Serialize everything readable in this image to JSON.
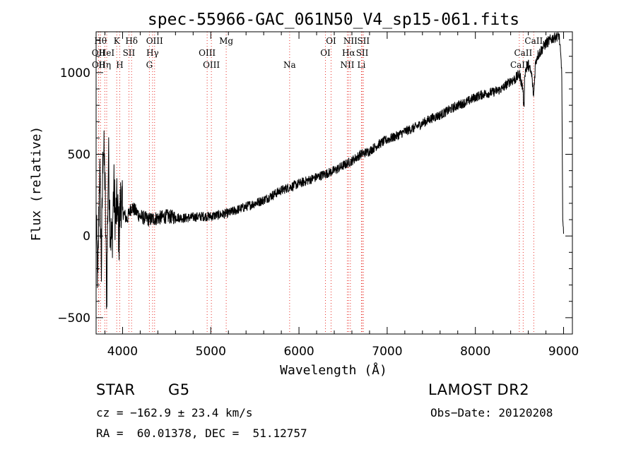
{
  "chart_data": {
    "type": "line",
    "title": "spec-55966-GAC_061N50_V4_sp15-061.fits",
    "xlabel": "Wavelength (Å)",
    "ylabel": "Flux (relative)",
    "xlim": [
      3700,
      9100
    ],
    "ylim": [
      -600,
      1250
    ],
    "x_ticks": [
      4000,
      5000,
      6000,
      7000,
      8000,
      9000
    ],
    "x_tick_labels": [
      "4000",
      "5000",
      "6000",
      "7000",
      "8000",
      "9000"
    ],
    "y_ticks": [
      -500,
      0,
      500,
      1000
    ],
    "y_tick_labels": [
      "−500",
      "0",
      "500",
      "1000"
    ],
    "grid": false,
    "series": [
      {
        "color": "#000000",
        "points": [
          [
            3700,
            100
          ],
          [
            3720,
            -300
          ],
          [
            3740,
            450
          ],
          [
            3760,
            -200
          ],
          [
            3780,
            600
          ],
          [
            3800,
            350
          ],
          [
            3820,
            -400
          ],
          [
            3840,
            500
          ],
          [
            3860,
            50
          ],
          [
            3880,
            -50
          ],
          [
            3900,
            300
          ],
          [
            3920,
            100
          ],
          [
            3940,
            200
          ],
          [
            3960,
            0
          ],
          [
            3980,
            250
          ],
          [
            4000,
            150
          ],
          [
            4050,
            100
          ],
          [
            4100,
            180
          ],
          [
            4200,
            120
          ],
          [
            4300,
            100
          ],
          [
            4400,
            110
          ],
          [
            4500,
            120
          ],
          [
            4600,
            115
          ],
          [
            4700,
            110
          ],
          [
            4800,
            115
          ],
          [
            4900,
            120
          ],
          [
            5000,
            120
          ],
          [
            5100,
            130
          ],
          [
            5200,
            140
          ],
          [
            5300,
            160
          ],
          [
            5400,
            180
          ],
          [
            5500,
            200
          ],
          [
            5600,
            220
          ],
          [
            5700,
            250
          ],
          [
            5800,
            280
          ],
          [
            5900,
            300
          ],
          [
            6000,
            320
          ],
          [
            6100,
            340
          ],
          [
            6200,
            360
          ],
          [
            6300,
            380
          ],
          [
            6400,
            400
          ],
          [
            6500,
            430
          ],
          [
            6600,
            460
          ],
          [
            6700,
            500
          ],
          [
            6800,
            520
          ],
          [
            6900,
            560
          ],
          [
            7000,
            590
          ],
          [
            7100,
            610
          ],
          [
            7200,
            640
          ],
          [
            7300,
            660
          ],
          [
            7400,
            690
          ],
          [
            7500,
            720
          ],
          [
            7600,
            740
          ],
          [
            7700,
            770
          ],
          [
            7800,
            800
          ],
          [
            7900,
            820
          ],
          [
            8000,
            850
          ],
          [
            8100,
            870
          ],
          [
            8200,
            880
          ],
          [
            8300,
            900
          ],
          [
            8400,
            950
          ],
          [
            8450,
            960
          ],
          [
            8500,
            990
          ],
          [
            8540,
            900
          ],
          [
            8550,
            760
          ],
          [
            8560,
            1000
          ],
          [
            8600,
            1050
          ],
          [
            8640,
            980
          ],
          [
            8660,
            850
          ],
          [
            8680,
            1050
          ],
          [
            8700,
            1100
          ],
          [
            8800,
            1180
          ],
          [
            8900,
            1220
          ],
          [
            8950,
            1230
          ],
          [
            8980,
            1000
          ],
          [
            8990,
            100
          ],
          [
            9000,
            0
          ]
        ]
      }
    ],
    "line_markers": {
      "color": "#e8312a",
      "lines": [
        {
          "wavelength": 3727,
          "label": "OII",
          "row": 2
        },
        {
          "wavelength": 3729,
          "label": "OII",
          "row": 3
        },
        {
          "wavelength": 3750,
          "label": "Hθ",
          "row": 1
        },
        {
          "wavelength": 3798,
          "label": "Hη",
          "row": 3
        },
        {
          "wavelength": 3820,
          "label": "HeI",
          "row": 2
        },
        {
          "wavelength": 3934,
          "label": "K",
          "row": 1
        },
        {
          "wavelength": 3968,
          "label": "H",
          "row": 3
        },
        {
          "wavelength": 4072,
          "label": "SII",
          "row": 2
        },
        {
          "wavelength": 4102,
          "label": "Hδ",
          "row": 1
        },
        {
          "wavelength": 4304,
          "label": "G",
          "row": 3
        },
        {
          "wavelength": 4340,
          "label": "Hγ",
          "row": 2
        },
        {
          "wavelength": 4363,
          "label": "OIII",
          "row": 1
        },
        {
          "wavelength": 4959,
          "label": "OIII",
          "row": 2
        },
        {
          "wavelength": 5007,
          "label": "OIII",
          "row": 3
        },
        {
          "wavelength": 5175,
          "label": "Mg",
          "row": 1
        },
        {
          "wavelength": 5894,
          "label": "Na",
          "row": 3
        },
        {
          "wavelength": 6300,
          "label": "OI",
          "row": 2
        },
        {
          "wavelength": 6364,
          "label": "OI",
          "row": 1
        },
        {
          "wavelength": 6548,
          "label": "NII",
          "row": 3
        },
        {
          "wavelength": 6563,
          "label": "Hα",
          "row": 2
        },
        {
          "wavelength": 6583,
          "label": "NII",
          "row": 1
        },
        {
          "wavelength": 6708,
          "label": "Li",
          "row": 3
        },
        {
          "wavelength": 6717,
          "label": "SII",
          "row": 2
        },
        {
          "wavelength": 6731,
          "label": "SII",
          "row": 1
        },
        {
          "wavelength": 8498,
          "label": "CaII",
          "row": 3
        },
        {
          "wavelength": 8542,
          "label": "CaII",
          "row": 2
        },
        {
          "wavelength": 8662,
          "label": "CaII",
          "row": 1
        }
      ]
    }
  },
  "info": {
    "object_class": "STAR",
    "subclass": "G5",
    "survey": "LAMOST DR2",
    "cz": "cz = −162.9 ± 23.4 km/s",
    "obs_date": "Obs−Date: 20120208",
    "coords": "RA =  60.01378, DEC =  51.12757"
  }
}
